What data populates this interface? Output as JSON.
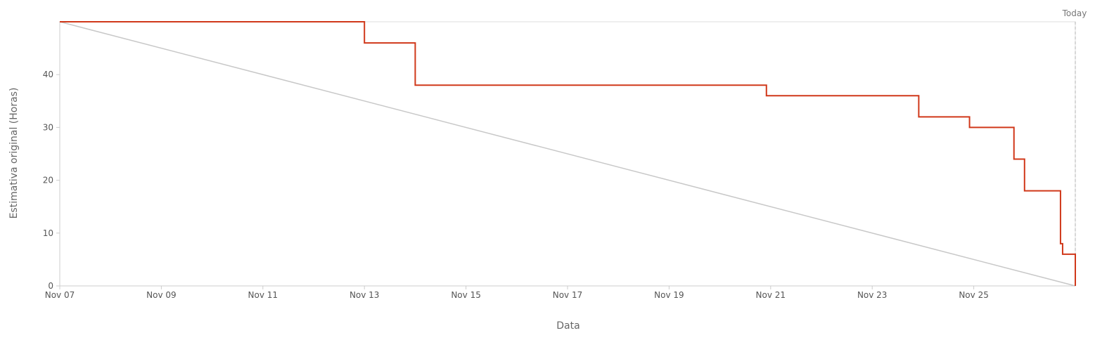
{
  "chart_data": {
    "type": "line",
    "xlabel": "Data",
    "ylabel": "Estimativa original (Horas)",
    "x_range": [
      "Nov 07",
      "Nov 27"
    ],
    "ylim": [
      0,
      50
    ],
    "y_ticks": [
      0,
      10,
      20,
      30,
      40
    ],
    "x_ticks": [
      "Nov 07",
      "Nov 09",
      "Nov 11",
      "Nov 13",
      "Nov 15",
      "Nov 17",
      "Nov 19",
      "Nov 21",
      "Nov 23",
      "Nov 25"
    ],
    "grid": false,
    "today_marker": {
      "label": "Today",
      "x": "Nov 27"
    },
    "series": [
      {
        "style": "step",
        "color": "#d0381a",
        "points": [
          {
            "x": "Nov 07 00:00",
            "y": 50
          },
          {
            "x": "Nov 13 00:00",
            "y": 46
          },
          {
            "x": "Nov 14 00:00",
            "y": 38
          },
          {
            "x": "Nov 20 22:00",
            "y": 36
          },
          {
            "x": "Nov 23 22:00",
            "y": 32
          },
          {
            "x": "Nov 24 22:00",
            "y": 30
          },
          {
            "x": "Nov 25 19:00",
            "y": 24
          },
          {
            "x": "Nov 26 00:00",
            "y": 18
          },
          {
            "x": "Nov 26 17:00",
            "y": 8
          },
          {
            "x": "Nov 26 18:00",
            "y": 6
          },
          {
            "x": "Nov 27 00:00",
            "y": 0
          }
        ]
      },
      {
        "style": "line",
        "color": "#c8c8c8",
        "points": [
          {
            "x": "Nov 07 00:00",
            "y": 50
          },
          {
            "x": "Nov 27 00:00",
            "y": 0
          }
        ]
      }
    ]
  }
}
